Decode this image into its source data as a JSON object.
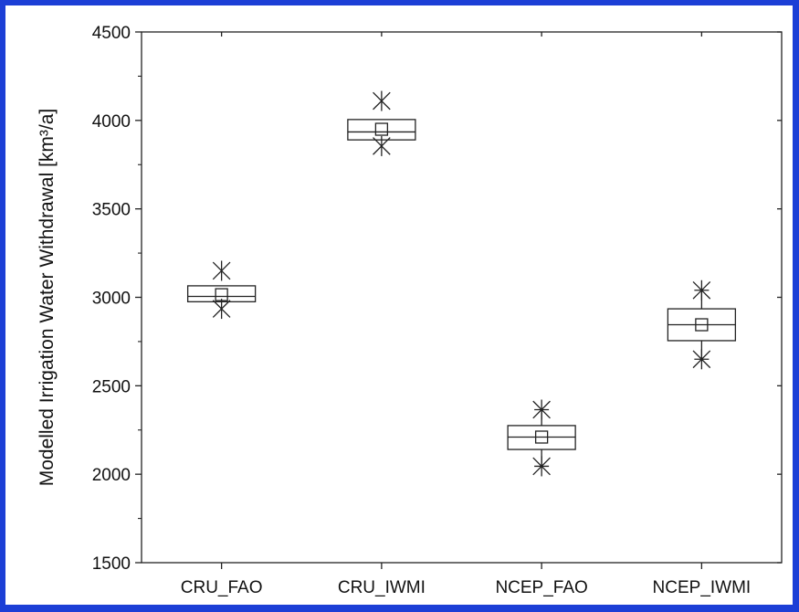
{
  "colors": {
    "frame_border": "#1c3fd6",
    "background": "#ffffff",
    "ink": "#222222"
  },
  "chart_data": {
    "type": "box",
    "ylabel": "Modelled Irrigation Water Withdrawal [km³/a]",
    "xlabel": "",
    "ylim": [
      1500,
      4500
    ],
    "yticks": [
      1500,
      2000,
      2500,
      3000,
      3500,
      4000,
      4500
    ],
    "yticks_labels": [
      "1500",
      "2000",
      "2500",
      "3000",
      "3500",
      "4000",
      "4500"
    ],
    "categories": [
      "CRU_FAO",
      "CRU_IWMI",
      "NCEP_FAO",
      "NCEP_IWMI"
    ],
    "grid": false,
    "legend": "none",
    "boxes": [
      {
        "category": "CRU_FAO",
        "q1": 2975,
        "median": 3005,
        "q3": 3065,
        "mean": 3015,
        "whisker_low": 2975,
        "whisker_high": 3065,
        "min": 2935,
        "max": 3150
      },
      {
        "category": "CRU_IWMI",
        "q1": 3890,
        "median": 3935,
        "q3": 4005,
        "mean": 3950,
        "whisker_low": 3890,
        "whisker_high": 4005,
        "min": 3855,
        "max": 4110
      },
      {
        "category": "NCEP_FAO",
        "q1": 2140,
        "median": 2210,
        "q3": 2275,
        "mean": 2210,
        "whisker_low": 2045,
        "whisker_high": 2365,
        "min": 2045,
        "max": 2365
      },
      {
        "category": "NCEP_IWMI",
        "q1": 2755,
        "median": 2845,
        "q3": 2935,
        "mean": 2845,
        "whisker_low": 2650,
        "whisker_high": 3040,
        "min": 2650,
        "max": 3040
      }
    ]
  }
}
